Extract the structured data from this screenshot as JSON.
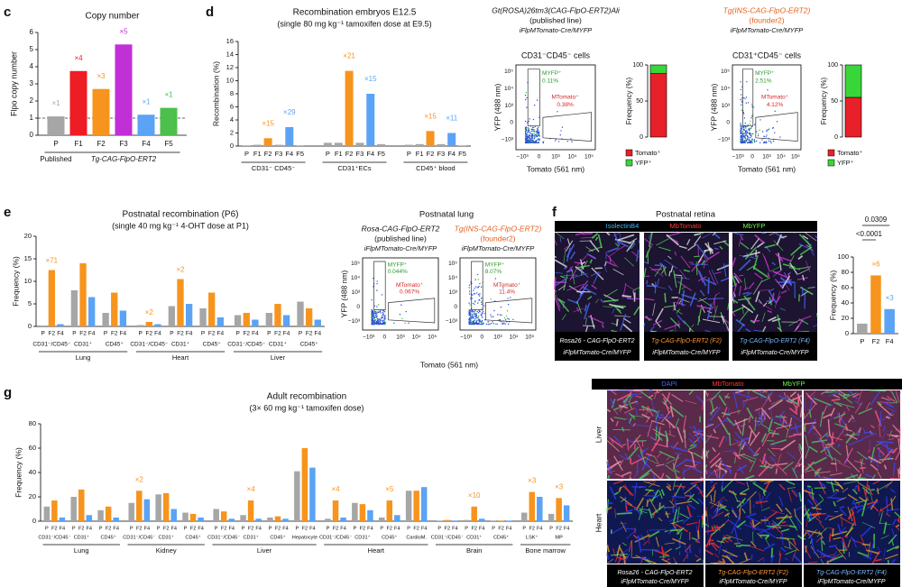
{
  "chart_data": [
    {
      "type": "bar",
      "title": "Copy number",
      "y_label": "Flpo copy number",
      "ylim": [
        0,
        6
      ],
      "yticks": [
        0,
        1,
        2,
        3,
        4,
        5,
        6
      ],
      "ref_line": 1,
      "bar_labels": [
        "P",
        "F1",
        "F2",
        "F3",
        "F4",
        "F5"
      ],
      "colors": [
        "#a6a6a6",
        "#ee1c25",
        "#f7941d",
        "#c12fd6",
        "#5ba3f5",
        "#4cbf4c"
      ],
      "groups": [
        {
          "values": [
            1.1,
            3.75,
            2.7,
            5.3,
            1.2,
            1.6
          ],
          "fold_labels": [
            "×1",
            "×4",
            "×3",
            "×5",
            "×1",
            "×1"
          ]
        }
      ],
      "brackets": [
        "Published",
        "Tg-CAG-FlpO-ERT2"
      ]
    },
    {
      "type": "bar",
      "title": "Recombination embryos E12.5",
      "subtitle": "(single 80 mg kg⁻¹ tamoxifen dose at E9.5)",
      "y_label": "Recombination (%)",
      "ylim": [
        0,
        16
      ],
      "yticks": [
        0,
        2,
        4,
        6,
        8,
        10,
        12,
        14,
        16
      ],
      "bar_labels": [
        "P",
        "F1",
        "F2",
        "F3",
        "F4",
        "F5"
      ],
      "colors": [
        "#a6a6a6",
        "#a6a6a6",
        "#f7941d",
        "#a6a6a6",
        "#5ba3f5",
        "#a6a6a6"
      ],
      "groups": [
        {
          "name": "CD31⁻ CD45⁻",
          "values": [
            0.1,
            0.2,
            1.2,
            0.2,
            2.9,
            0.1
          ],
          "fold_labels": [
            null,
            null,
            "×15",
            null,
            "×29",
            null
          ]
        },
        {
          "name": "CD31⁺ECs",
          "values": [
            0.5,
            0.5,
            11.5,
            0.5,
            8.0,
            0.3
          ],
          "fold_labels": [
            null,
            null,
            "×21",
            null,
            "×15",
            null
          ]
        },
        {
          "name": "CD45⁺ blood",
          "values": [
            0.2,
            0.3,
            2.3,
            0.3,
            2.0,
            0.1
          ],
          "fold_labels": [
            null,
            null,
            "×15",
            null,
            "×11",
            null
          ]
        }
      ]
    },
    {
      "type": "stacked",
      "y_label": "Frequency (%)",
      "ylim": [
        0,
        100
      ],
      "yticks": [
        0,
        50,
        100
      ],
      "series": [
        {
          "name": "Tomato⁺",
          "color": "#e8202a",
          "values": [
            88
          ]
        },
        {
          "name": "YFP⁺",
          "color": "#39d639",
          "values": [
            12
          ]
        }
      ]
    },
    {
      "type": "stacked",
      "y_label": "Frequency (%)",
      "ylim": [
        0,
        100
      ],
      "yticks": [
        0,
        50,
        100
      ],
      "series": [
        {
          "name": "Tomato⁺",
          "color": "#e8202a",
          "values": [
            55
          ]
        },
        {
          "name": "YFP⁺",
          "color": "#39d639",
          "values": [
            45
          ]
        }
      ]
    },
    {
      "type": "bar",
      "title": "Postnatal recombination (P6)",
      "subtitle": "(single 40 mg kg⁻¹ 4-OHT dose at P1)",
      "y_label": "Frequency (%)",
      "ylim": [
        0,
        20
      ],
      "yticks": [
        0,
        5,
        10,
        15,
        20
      ],
      "bar_labels": [
        "P",
        "F2",
        "F4"
      ],
      "colors": [
        "#a6a6a6",
        "#f7941d",
        "#5ba3f5"
      ],
      "groups": [
        {
          "name": "Lung",
          "subgroups": [
            {
              "name": "CD31⁻/CD45⁻",
              "values": [
                0.2,
                12.5,
                0.5
              ],
              "fold_labels": [
                null,
                "×71",
                null
              ]
            },
            {
              "name": "CD31⁺",
              "values": [
                8,
                14,
                6.5
              ]
            },
            {
              "name": "CD45⁺",
              "values": [
                3,
                7.5,
                3.5
              ]
            }
          ]
        },
        {
          "name": "Heart",
          "subgroups": [
            {
              "name": "CD31⁻/CD45⁻",
              "values": [
                0.3,
                1,
                0.5
              ],
              "fold_labels": [
                null,
                "×2",
                null
              ]
            },
            {
              "name": "CD31⁺",
              "values": [
                4.5,
                10.5,
                5
              ],
              "fold_labels": [
                null,
                "×2",
                null
              ]
            },
            {
              "name": "CD45⁺",
              "values": [
                4,
                7.5,
                2
              ]
            }
          ]
        },
        {
          "name": "Liver",
          "subgroups": [
            {
              "name": "CD31⁻/CD45⁻",
              "values": [
                2.5,
                3,
                1.5
              ]
            },
            {
              "name": "CD31⁺",
              "values": [
                3,
                5,
                2.5
              ]
            },
            {
              "name": "CD45⁺",
              "values": [
                5.5,
                4,
                1.5
              ]
            }
          ]
        }
      ]
    },
    {
      "type": "bar",
      "y_label": "Frequency (%)",
      "ylim": [
        0,
        100
      ],
      "yticks": [
        0,
        20,
        40,
        60,
        80,
        100
      ],
      "bar_labels": [
        "P",
        "F2",
        "F4"
      ],
      "colors": [
        "#a6a6a6",
        "#f7941d",
        "#5ba3f5"
      ],
      "groups": [
        {
          "values": [
            13,
            76,
            32
          ],
          "fold_labels": [
            null,
            "×6",
            "×3"
          ]
        }
      ],
      "p_values": [
        "0.0309",
        "<0.0001"
      ]
    },
    {
      "type": "bar",
      "title": "Adult recombination",
      "subtitle": "(3× 60 mg kg⁻¹ tamoxifen dose)",
      "y_label": "Frequency (%)",
      "ylim": [
        0,
        80
      ],
      "yticks": [
        0,
        20,
        40,
        60,
        80
      ],
      "bar_labels": [
        "P",
        "F2",
        "F4"
      ],
      "colors": [
        "#a6a6a6",
        "#f7941d",
        "#5ba3f5"
      ],
      "groups": [
        {
          "name": "Lung",
          "subgroups": [
            {
              "name": "CD31⁻/CD45⁻",
              "values": [
                12,
                17,
                3
              ]
            },
            {
              "name": "CD31⁺",
              "values": [
                20,
                26,
                5
              ]
            },
            {
              "name": "CD45⁺",
              "values": [
                9,
                12,
                3
              ]
            }
          ]
        },
        {
          "name": "Kidney",
          "subgroups": [
            {
              "name": "CD31⁻/CD45⁻",
              "values": [
                15,
                25,
                18
              ],
              "fold_labels": [
                null,
                "×2",
                null
              ]
            },
            {
              "name": "CD31⁺",
              "values": [
                22,
                23,
                10
              ]
            },
            {
              "name": "CD45⁺",
              "values": [
                7,
                6,
                3
              ]
            }
          ]
        },
        {
          "name": "Liver",
          "subgroups": [
            {
              "name": "CD31⁻/CD45⁻",
              "values": [
                10,
                8,
                2
              ]
            },
            {
              "name": "CD31⁺",
              "values": [
                5,
                17,
                2
              ],
              "fold_labels": [
                null,
                "×4",
                null
              ]
            },
            {
              "name": "CD45⁺",
              "values": [
                3,
                4,
                2
              ]
            },
            {
              "name": "Hepatocyte",
              "values": [
                41,
                60,
                44
              ]
            }
          ]
        },
        {
          "name": "Heart",
          "subgroups": [
            {
              "name": "CD31⁻/CD45⁻",
              "values": [
                2,
                17,
                3
              ],
              "fold_labels": [
                null,
                "×4",
                null
              ]
            },
            {
              "name": "CD31⁺",
              "values": [
                15,
                14,
                9
              ]
            },
            {
              "name": "CD45⁺",
              "values": [
                3,
                17,
                5
              ],
              "fold_labels": [
                null,
                "×5",
                null
              ]
            },
            {
              "name": "CardioM.",
              "values": [
                25,
                25,
                28
              ]
            }
          ]
        },
        {
          "name": "Brain",
          "subgroups": [
            {
              "name": "CD31⁻/CD45⁻",
              "values": [
                0.5,
                1,
                0.5
              ]
            },
            {
              "name": "CD31⁺",
              "values": [
                1,
                12,
                2
              ],
              "fold_labels": [
                null,
                "×10",
                null
              ]
            },
            {
              "name": "CD45⁺",
              "values": [
                0.5,
                0.5,
                0.5
              ]
            }
          ]
        },
        {
          "name": "Bone marrow",
          "subgroups": [
            {
              "name": "LSK⁺",
              "values": [
                7,
                24,
                20
              ],
              "fold_labels": [
                null,
                "×3",
                null
              ]
            },
            {
              "name": "MP",
              "values": [
                6,
                19,
                13
              ],
              "fold_labels": [
                null,
                "×3",
                null
              ]
            }
          ]
        }
      ]
    }
  ],
  "figure": {
    "panel_letters": [
      "c",
      "d",
      "e",
      "f",
      "g"
    ],
    "flow_d": {
      "x_label": "Tomato (561 nm)",
      "y_label": "YFP (488 nm)",
      "x_ticks": [
        "−10³",
        "0",
        "10³",
        "10⁴",
        "10⁵"
      ],
      "y_ticks": [
        "10⁵",
        "10⁴",
        "10³",
        "0",
        "−10³"
      ],
      "plots": [
        {
          "title": [
            "Gt(ROSA)26tm3(CAG-FlpO-ERT2)Ali",
            "(published line)",
            "iFlpMTomato-Cre/MYFP"
          ],
          "population": "CD31⁻CD45⁻ cells",
          "gates": [
            {
              "name": "MYFP⁺",
              "percent": "0.11%"
            },
            {
              "name": "MTomato⁺",
              "percent": "0.38%"
            }
          ]
        },
        {
          "title": [
            "Tg(INS-CAG-FlpO-ERT2)",
            "(founder2)",
            "iFlpMTomato-Cre/MYFP"
          ],
          "population": "CD31⁺CD45⁻ cells",
          "gates": [
            {
              "name": "MYFP⁺",
              "percent": "2.51%"
            },
            {
              "name": "MTomato⁺",
              "percent": "4.12%"
            }
          ]
        }
      ]
    },
    "flow_e": {
      "title": "Postnatal lung",
      "x_label": "Tomato (561 nm)",
      "y_label": "YFP (488 nm)",
      "x_ticks": [
        "−10³",
        "0",
        "10³",
        "10⁴",
        "10⁵"
      ],
      "y_ticks": [
        "10⁵",
        "10⁴",
        "10³",
        "0",
        "−10³"
      ],
      "plots": [
        {
          "title": [
            "Rosa-CAG-FlpO-ERT2",
            "(published line)",
            "iFlpMTomato-Cre/MYFP"
          ],
          "gates": [
            {
              "name": "MYFP⁺",
              "percent": "0.044%"
            },
            {
              "name": "MTomato⁺",
              "percent": "0.067%"
            }
          ]
        },
        {
          "title": [
            "Tg(INS-CAG-FlpO-ERT2)",
            "(founder2)",
            "iFlpMTomato-Cre/MYFP"
          ],
          "gates": [
            {
              "name": "MYFP⁺",
              "percent": "8.07%"
            },
            {
              "name": "MTomato⁺",
              "percent": "11.4%"
            }
          ]
        }
      ]
    },
    "retina": {
      "title": "Postnatal retina",
      "stains": [
        "IsolectinB4",
        "MbTomato",
        "MbYFP"
      ],
      "captions": [
        {
          "line1": "Rosa26 - CAG-FlpO-ERT2",
          "line2": "iFlpMTomato-Cre/MYFP"
        },
        {
          "line1": "Tg-CAG-FlpO-ERT2 (F2)",
          "line2": "iFlpMTomato-Cre/MYFP"
        },
        {
          "line1": "Tg-CAG-FlpO-ERT2 (F4)",
          "line2": "iFlpMTomato-Cre/MYFP"
        }
      ]
    },
    "adult_images": {
      "stains": [
        "DAPI",
        "MbTomato",
        "MbYFP"
      ],
      "rows": [
        "Liver",
        "Heart"
      ],
      "captions": [
        {
          "line1": "Rosa26 - CAG-FlpO-ERT2",
          "line2": "iFlpMTomato-Cre/MYFP"
        },
        {
          "line1": "Tg-CAG-FlpO-ERT2 (F2)",
          "line2": "iFlpMTomato-Cre/MYFP"
        },
        {
          "line1": "Tg-CAG-FlpO-ERT2 (F4)",
          "line2": "iFlpMTomato-Cre/MYFP"
        }
      ]
    }
  }
}
